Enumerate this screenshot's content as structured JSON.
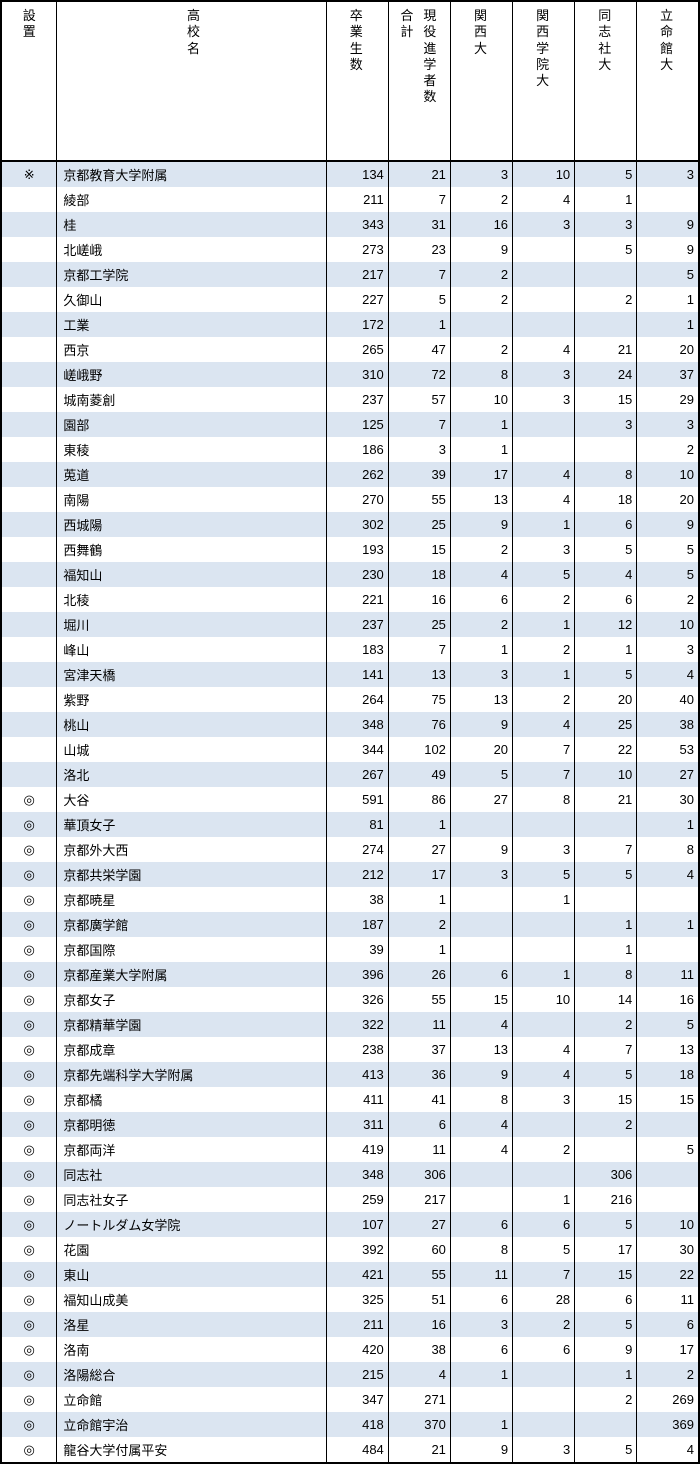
{
  "stripe_color": "#dbe5f1",
  "columns": [
    {
      "key": "setti",
      "label": [
        "設",
        "置"
      ],
      "class": "col-setti"
    },
    {
      "key": "name",
      "label": [
        "高",
        "校",
        "名"
      ],
      "class": "col-name"
    },
    {
      "key": "grads",
      "label": [
        "卒",
        "業",
        "生",
        "数"
      ],
      "class": "col-num"
    },
    {
      "key": "goukei",
      "label_dual": [
        [
          "合",
          "計"
        ],
        [
          "現",
          "役",
          "進",
          "学",
          "者",
          "数"
        ]
      ],
      "class": "col-num"
    },
    {
      "key": "kansai",
      "label": [
        "関",
        "西",
        "大"
      ],
      "class": "col-num"
    },
    {
      "key": "kangaku",
      "label": [
        "関",
        "西",
        "学",
        "院",
        "大"
      ],
      "class": "col-num"
    },
    {
      "key": "doshisha",
      "label": [
        "同",
        "志",
        "社",
        "大"
      ],
      "class": "col-num"
    },
    {
      "key": "ritsumei",
      "label": [
        "立",
        "命",
        "館",
        "大"
      ],
      "class": "col-num"
    }
  ],
  "rows": [
    {
      "setti": "※",
      "name": "京都教育大学附属",
      "grads": "134",
      "goukei": "21",
      "kansai": "3",
      "kangaku": "10",
      "doshisha": "5",
      "ritsumei": "3"
    },
    {
      "setti": "",
      "name": "綾部",
      "grads": "211",
      "goukei": "7",
      "kansai": "2",
      "kangaku": "4",
      "doshisha": "1",
      "ritsumei": ""
    },
    {
      "setti": "",
      "name": "桂",
      "grads": "343",
      "goukei": "31",
      "kansai": "16",
      "kangaku": "3",
      "doshisha": "3",
      "ritsumei": "9"
    },
    {
      "setti": "",
      "name": "北嵯峨",
      "grads": "273",
      "goukei": "23",
      "kansai": "9",
      "kangaku": "",
      "doshisha": "5",
      "ritsumei": "9"
    },
    {
      "setti": "",
      "name": "京都工学院",
      "grads": "217",
      "goukei": "7",
      "kansai": "2",
      "kangaku": "",
      "doshisha": "",
      "ritsumei": "5"
    },
    {
      "setti": "",
      "name": "久御山",
      "grads": "227",
      "goukei": "5",
      "kansai": "2",
      "kangaku": "",
      "doshisha": "2",
      "ritsumei": "1"
    },
    {
      "setti": "",
      "name": "工業",
      "grads": "172",
      "goukei": "1",
      "kansai": "",
      "kangaku": "",
      "doshisha": "",
      "ritsumei": "1"
    },
    {
      "setti": "",
      "name": "西京",
      "grads": "265",
      "goukei": "47",
      "kansai": "2",
      "kangaku": "4",
      "doshisha": "21",
      "ritsumei": "20"
    },
    {
      "setti": "",
      "name": "嵯峨野",
      "grads": "310",
      "goukei": "72",
      "kansai": "8",
      "kangaku": "3",
      "doshisha": "24",
      "ritsumei": "37"
    },
    {
      "setti": "",
      "name": "城南菱創",
      "grads": "237",
      "goukei": "57",
      "kansai": "10",
      "kangaku": "3",
      "doshisha": "15",
      "ritsumei": "29"
    },
    {
      "setti": "",
      "name": "園部",
      "grads": "125",
      "goukei": "7",
      "kansai": "1",
      "kangaku": "",
      "doshisha": "3",
      "ritsumei": "3"
    },
    {
      "setti": "",
      "name": "東稜",
      "grads": "186",
      "goukei": "3",
      "kansai": "1",
      "kangaku": "",
      "doshisha": "",
      "ritsumei": "2"
    },
    {
      "setti": "",
      "name": "莵道",
      "grads": "262",
      "goukei": "39",
      "kansai": "17",
      "kangaku": "4",
      "doshisha": "8",
      "ritsumei": "10"
    },
    {
      "setti": "",
      "name": "南陽",
      "grads": "270",
      "goukei": "55",
      "kansai": "13",
      "kangaku": "4",
      "doshisha": "18",
      "ritsumei": "20"
    },
    {
      "setti": "",
      "name": "西城陽",
      "grads": "302",
      "goukei": "25",
      "kansai": "9",
      "kangaku": "1",
      "doshisha": "6",
      "ritsumei": "9"
    },
    {
      "setti": "",
      "name": "西舞鶴",
      "grads": "193",
      "goukei": "15",
      "kansai": "2",
      "kangaku": "3",
      "doshisha": "5",
      "ritsumei": "5"
    },
    {
      "setti": "",
      "name": "福知山",
      "grads": "230",
      "goukei": "18",
      "kansai": "4",
      "kangaku": "5",
      "doshisha": "4",
      "ritsumei": "5"
    },
    {
      "setti": "",
      "name": "北稜",
      "grads": "221",
      "goukei": "16",
      "kansai": "6",
      "kangaku": "2",
      "doshisha": "6",
      "ritsumei": "2"
    },
    {
      "setti": "",
      "name": "堀川",
      "grads": "237",
      "goukei": "25",
      "kansai": "2",
      "kangaku": "1",
      "doshisha": "12",
      "ritsumei": "10"
    },
    {
      "setti": "",
      "name": "峰山",
      "grads": "183",
      "goukei": "7",
      "kansai": "1",
      "kangaku": "2",
      "doshisha": "1",
      "ritsumei": "3"
    },
    {
      "setti": "",
      "name": "宮津天橋",
      "grads": "141",
      "goukei": "13",
      "kansai": "3",
      "kangaku": "1",
      "doshisha": "5",
      "ritsumei": "4"
    },
    {
      "setti": "",
      "name": "紫野",
      "grads": "264",
      "goukei": "75",
      "kansai": "13",
      "kangaku": "2",
      "doshisha": "20",
      "ritsumei": "40"
    },
    {
      "setti": "",
      "name": "桃山",
      "grads": "348",
      "goukei": "76",
      "kansai": "9",
      "kangaku": "4",
      "doshisha": "25",
      "ritsumei": "38"
    },
    {
      "setti": "",
      "name": "山城",
      "grads": "344",
      "goukei": "102",
      "kansai": "20",
      "kangaku": "7",
      "doshisha": "22",
      "ritsumei": "53"
    },
    {
      "setti": "",
      "name": "洛北",
      "grads": "267",
      "goukei": "49",
      "kansai": "5",
      "kangaku": "7",
      "doshisha": "10",
      "ritsumei": "27"
    },
    {
      "setti": "◎",
      "name": "大谷",
      "grads": "591",
      "goukei": "86",
      "kansai": "27",
      "kangaku": "8",
      "doshisha": "21",
      "ritsumei": "30"
    },
    {
      "setti": "◎",
      "name": "華頂女子",
      "grads": "81",
      "goukei": "1",
      "kansai": "",
      "kangaku": "",
      "doshisha": "",
      "ritsumei": "1"
    },
    {
      "setti": "◎",
      "name": "京都外大西",
      "grads": "274",
      "goukei": "27",
      "kansai": "9",
      "kangaku": "3",
      "doshisha": "7",
      "ritsumei": "8"
    },
    {
      "setti": "◎",
      "name": "京都共栄学園",
      "grads": "212",
      "goukei": "17",
      "kansai": "3",
      "kangaku": "5",
      "doshisha": "5",
      "ritsumei": "4"
    },
    {
      "setti": "◎",
      "name": "京都暁星",
      "grads": "38",
      "goukei": "1",
      "kansai": "",
      "kangaku": "1",
      "doshisha": "",
      "ritsumei": ""
    },
    {
      "setti": "◎",
      "name": "京都廣学館",
      "grads": "187",
      "goukei": "2",
      "kansai": "",
      "kangaku": "",
      "doshisha": "1",
      "ritsumei": "1"
    },
    {
      "setti": "◎",
      "name": "京都国際",
      "grads": "39",
      "goukei": "1",
      "kansai": "",
      "kangaku": "",
      "doshisha": "1",
      "ritsumei": ""
    },
    {
      "setti": "◎",
      "name": "京都産業大学附属",
      "grads": "396",
      "goukei": "26",
      "kansai": "6",
      "kangaku": "1",
      "doshisha": "8",
      "ritsumei": "11"
    },
    {
      "setti": "◎",
      "name": "京都女子",
      "grads": "326",
      "goukei": "55",
      "kansai": "15",
      "kangaku": "10",
      "doshisha": "14",
      "ritsumei": "16"
    },
    {
      "setti": "◎",
      "name": "京都精華学園",
      "grads": "322",
      "goukei": "11",
      "kansai": "4",
      "kangaku": "",
      "doshisha": "2",
      "ritsumei": "5"
    },
    {
      "setti": "◎",
      "name": "京都成章",
      "grads": "238",
      "goukei": "37",
      "kansai": "13",
      "kangaku": "4",
      "doshisha": "7",
      "ritsumei": "13"
    },
    {
      "setti": "◎",
      "name": "京都先端科学大学附属",
      "grads": "413",
      "goukei": "36",
      "kansai": "9",
      "kangaku": "4",
      "doshisha": "5",
      "ritsumei": "18"
    },
    {
      "setti": "◎",
      "name": "京都橘",
      "grads": "411",
      "goukei": "41",
      "kansai": "8",
      "kangaku": "3",
      "doshisha": "15",
      "ritsumei": "15"
    },
    {
      "setti": "◎",
      "name": "京都明徳",
      "grads": "311",
      "goukei": "6",
      "kansai": "4",
      "kangaku": "",
      "doshisha": "2",
      "ritsumei": ""
    },
    {
      "setti": "◎",
      "name": "京都両洋",
      "grads": "419",
      "goukei": "11",
      "kansai": "4",
      "kangaku": "2",
      "doshisha": "",
      "ritsumei": "5"
    },
    {
      "setti": "◎",
      "name": "同志社",
      "grads": "348",
      "goukei": "306",
      "kansai": "",
      "kangaku": "",
      "doshisha": "306",
      "ritsumei": ""
    },
    {
      "setti": "◎",
      "name": "同志社女子",
      "grads": "259",
      "goukei": "217",
      "kansai": "",
      "kangaku": "1",
      "doshisha": "216",
      "ritsumei": ""
    },
    {
      "setti": "◎",
      "name": "ノートルダム女学院",
      "grads": "107",
      "goukei": "27",
      "kansai": "6",
      "kangaku": "6",
      "doshisha": "5",
      "ritsumei": "10"
    },
    {
      "setti": "◎",
      "name": "花園",
      "grads": "392",
      "goukei": "60",
      "kansai": "8",
      "kangaku": "5",
      "doshisha": "17",
      "ritsumei": "30"
    },
    {
      "setti": "◎",
      "name": "東山",
      "grads": "421",
      "goukei": "55",
      "kansai": "11",
      "kangaku": "7",
      "doshisha": "15",
      "ritsumei": "22"
    },
    {
      "setti": "◎",
      "name": "福知山成美",
      "grads": "325",
      "goukei": "51",
      "kansai": "6",
      "kangaku": "28",
      "doshisha": "6",
      "ritsumei": "11"
    },
    {
      "setti": "◎",
      "name": "洛星",
      "grads": "211",
      "goukei": "16",
      "kansai": "3",
      "kangaku": "2",
      "doshisha": "5",
      "ritsumei": "6"
    },
    {
      "setti": "◎",
      "name": "洛南",
      "grads": "420",
      "goukei": "38",
      "kansai": "6",
      "kangaku": "6",
      "doshisha": "9",
      "ritsumei": "17"
    },
    {
      "setti": "◎",
      "name": "洛陽総合",
      "grads": "215",
      "goukei": "4",
      "kansai": "1",
      "kangaku": "",
      "doshisha": "1",
      "ritsumei": "2"
    },
    {
      "setti": "◎",
      "name": "立命館",
      "grads": "347",
      "goukei": "271",
      "kansai": "",
      "kangaku": "",
      "doshisha": "2",
      "ritsumei": "269"
    },
    {
      "setti": "◎",
      "name": "立命館宇治",
      "grads": "418",
      "goukei": "370",
      "kansai": "1",
      "kangaku": "",
      "doshisha": "",
      "ritsumei": "369"
    },
    {
      "setti": "◎",
      "name": "龍谷大学付属平安",
      "grads": "484",
      "goukei": "21",
      "kansai": "9",
      "kangaku": "3",
      "doshisha": "5",
      "ritsumei": "4"
    }
  ]
}
